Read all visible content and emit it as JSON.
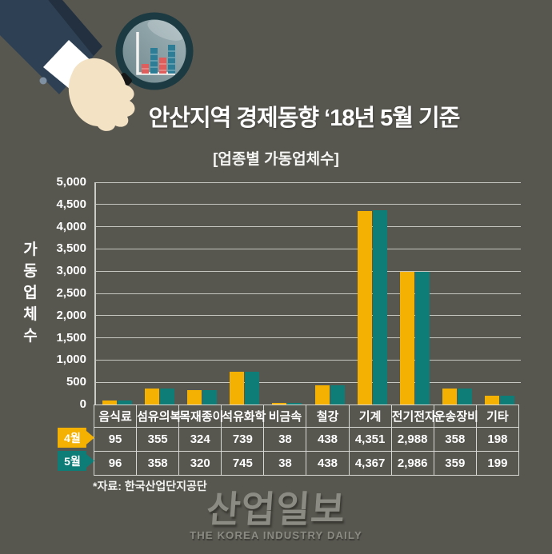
{
  "page": {
    "background": "#57564F"
  },
  "header": {
    "title": "안산지역 경제동향 ‘18년 5월 기준",
    "subtitle": "[업종별 가동업체수]",
    "illustration": "hand-holding-magnifier-with-bar-chart"
  },
  "chart_data": {
    "type": "bar",
    "title": "[업종별 가동업체수]",
    "ylabel": "가동업체수",
    "categories": [
      "음식료",
      "섬유의복",
      "목재종이",
      "석유화학",
      "비금속",
      "철강",
      "기계",
      "전기전자",
      "운송장비",
      "기타"
    ],
    "series": [
      {
        "name": "4월",
        "color": "#F5B101",
        "values": [
          95,
          355,
          324,
          739,
          38,
          438,
          4351,
          2988,
          358,
          198
        ]
      },
      {
        "name": "5월",
        "color": "#0E7D77",
        "values": [
          96,
          358,
          320,
          745,
          38,
          438,
          4367,
          2986,
          359,
          199
        ]
      }
    ],
    "ylim": [
      0,
      5000
    ],
    "ytick_step": 500,
    "grid": true,
    "legend_position": "left-of-table-rows",
    "gridline_color": "#C7C7C2",
    "text_color": "#FFFFFF"
  },
  "footer": {
    "source_note": "*자료: 한국산업단지공단",
    "logo_text": "산업일보",
    "logo_subtext": "THE KOREA INDUSTRY DAILY",
    "logo_color": "#8B8B83"
  }
}
